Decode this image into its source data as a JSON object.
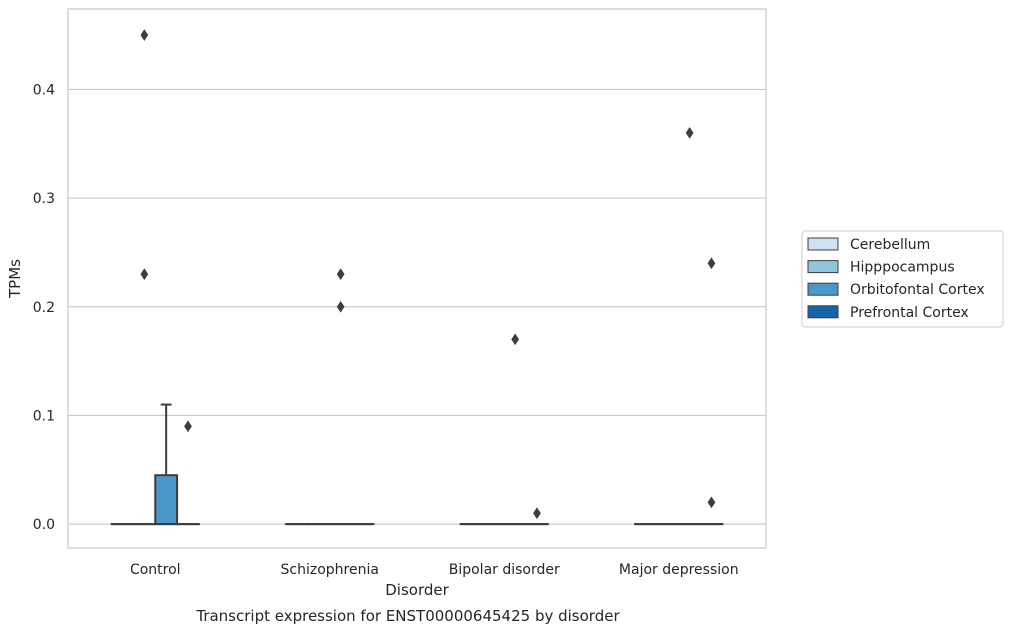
{
  "chart_data": {
    "type": "box",
    "title": "Transcript expression for ENST00000645425 by disorder",
    "xlabel": "Disorder",
    "ylabel": "TPMs",
    "ylim": [
      -0.022,
      0.474
    ],
    "yticks": [
      0.0,
      0.1,
      0.2,
      0.3,
      0.4
    ],
    "ytick_labels": [
      "0.0",
      "0.1",
      "0.2",
      "0.3",
      "0.4"
    ],
    "categories": [
      "Control",
      "Schizophrenia",
      "Bipolar disorder",
      "Major depression"
    ],
    "grid": "horizontal",
    "legend_position": "right-outside",
    "series": [
      {
        "name": "Cerebellum",
        "color": "#cfe1f2",
        "boxes": [
          {
            "min": 0,
            "q1": 0,
            "median": 0,
            "q3": 0,
            "max": 0,
            "outliers": []
          },
          {
            "min": 0,
            "q1": 0,
            "median": 0,
            "q3": 0,
            "max": 0,
            "outliers": []
          },
          {
            "min": 0,
            "q1": 0,
            "median": 0,
            "q3": 0,
            "max": 0,
            "outliers": []
          },
          {
            "min": 0,
            "q1": 0,
            "median": 0,
            "q3": 0,
            "max": 0,
            "outliers": []
          }
        ]
      },
      {
        "name": "Hipppocampus",
        "color": "#93c4de",
        "boxes": [
          {
            "min": 0,
            "q1": 0,
            "median": 0,
            "q3": 0,
            "max": 0,
            "outliers": [
              0.45,
              0.23
            ]
          },
          {
            "min": 0,
            "q1": 0,
            "median": 0,
            "q3": 0,
            "max": 0,
            "outliers": []
          },
          {
            "min": 0,
            "q1": 0,
            "median": 0,
            "q3": 0,
            "max": 0,
            "outliers": []
          },
          {
            "min": 0,
            "q1": 0,
            "median": 0,
            "q3": 0,
            "max": 0,
            "outliers": []
          }
        ]
      },
      {
        "name": "Orbitofontal Cortex",
        "color": "#4a98c9",
        "boxes": [
          {
            "min": 0,
            "q1": 0,
            "median": 0,
            "q3": 0.045,
            "max": 0.11,
            "outliers": []
          },
          {
            "min": 0,
            "q1": 0,
            "median": 0,
            "q3": 0,
            "max": 0,
            "outliers": [
              0.23,
              0.2
            ]
          },
          {
            "min": 0,
            "q1": 0,
            "median": 0,
            "q3": 0,
            "max": 0,
            "outliers": [
              0.17
            ]
          },
          {
            "min": 0,
            "q1": 0,
            "median": 0,
            "q3": 0,
            "max": 0,
            "outliers": [
              0.36
            ]
          }
        ]
      },
      {
        "name": "Prefrontal Cortex",
        "color": "#1764ab",
        "boxes": [
          {
            "min": 0,
            "q1": 0,
            "median": 0,
            "q3": 0,
            "max": 0,
            "outliers": [
              0.09
            ]
          },
          {
            "min": 0,
            "q1": 0,
            "median": 0,
            "q3": 0,
            "max": 0,
            "outliers": []
          },
          {
            "min": 0,
            "q1": 0,
            "median": 0,
            "q3": 0,
            "max": 0,
            "outliers": [
              0.01
            ]
          },
          {
            "min": 0,
            "q1": 0,
            "median": 0,
            "q3": 0,
            "max": 0,
            "outliers": [
              0.24,
              0.02
            ]
          }
        ]
      }
    ]
  }
}
